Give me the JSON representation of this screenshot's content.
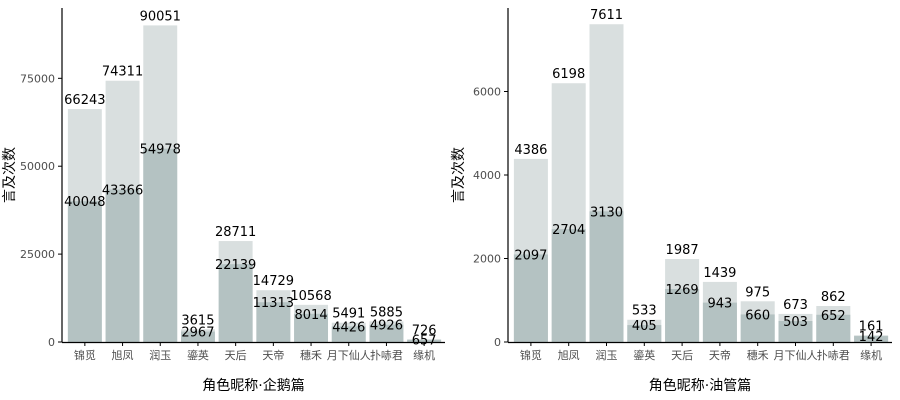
{
  "colors": {
    "total_fill": "#d9dfdf",
    "part_fill": "#b4c2c2",
    "axis": "#000000"
  },
  "chart_data": [
    {
      "type": "bar",
      "categories": [
        "锦觅",
        "旭凤",
        "润玉",
        "鎏英",
        "天后",
        "天帝",
        "穗禾",
        "月下仙人",
        "扑哧君",
        "缘机"
      ],
      "series": [
        {
          "values": [
            66243,
            74311,
            90051,
            3615,
            28711,
            14729,
            10568,
            5491,
            5885,
            726
          ]
        },
        {
          "values": [
            40048,
            43366,
            54978,
            2967,
            22139,
            11313,
            8014,
            4426,
            4926,
            657
          ]
        }
      ],
      "xlabel": "角色昵称·企鹅篇",
      "ylabel": "言及次数",
      "ylim": [
        0,
        95000
      ],
      "yticks": [
        0,
        25000,
        50000,
        75000
      ],
      "grid": false,
      "legend": "none"
    },
    {
      "type": "bar",
      "categories": [
        "锦觅",
        "旭凤",
        "润玉",
        "鎏英",
        "天后",
        "天帝",
        "穗禾",
        "月下仙人",
        "扑哧君",
        "缘机"
      ],
      "series": [
        {
          "values": [
            4386,
            6198,
            7611,
            533,
            1987,
            1439,
            975,
            673,
            862,
            161
          ]
        },
        {
          "values": [
            2097,
            2704,
            3130,
            405,
            1269,
            943,
            660,
            503,
            652,
            142
          ]
        }
      ],
      "xlabel": "角色昵称·油管篇",
      "ylabel": "言及次数",
      "ylim": [
        0,
        8000
      ],
      "yticks": [
        0,
        2000,
        4000,
        6000
      ],
      "grid": false,
      "legend": "none"
    }
  ]
}
